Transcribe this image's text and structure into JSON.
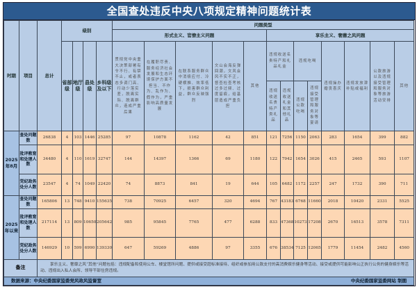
{
  "title": "全国查处违反中央八项规定精神问题统计表",
  "headers": {
    "period": "时期",
    "item": "项目",
    "total": "总计",
    "level": "级别",
    "levels": [
      "省部级",
      "地厅级",
      "县处级",
      "乡科级及以下"
    ],
    "problem_type": "问题类型",
    "formalism": "形式主义、官僚主义问题",
    "formalism_cols": [
      "贯彻党中央重大决策部署有令不行、有禁不止，或者表态多调门高、行动少落实差，脱离实际、脱离群众，造成严重后果",
      "在履职尽责、服务经济社会发展和生态环境保护方面不担当、不作为、乱作为、假作为，严重影响高质量发展",
      "在联系服务群众中消极应付、冷硬横推、效率低下，损害群众利益，群众反映强烈",
      "文山会海反弹回潮，文风会风不实不正，督查检查考核过多过频、过度留痕，给基层造成严重负担",
      "其他"
    ],
    "hedonism": "享乐主义、奢靡之风问题",
    "gifts": "违规收送名贵特产和礼品礼金",
    "gifts_sub": [
      "违规收送名贵特产类礼品",
      "违规收送礼金和其他礼品"
    ],
    "dining": "违规吃喝",
    "dining_sub": [
      "违规公款吃喝",
      "违规接受管理和服务对象等宴请"
    ],
    "hedonism_cols": [
      "违规操办婚丧喜庆",
      "违规发放津补贴或福利",
      "公款旅游以及违规接受管理和服务对象等旅游活动安排",
      "其他"
    ]
  },
  "rows": [
    {
      "period": "2025年8月",
      "item": "查处问题数",
      "values": [
        "26838",
        "4",
        "103",
        "1446",
        "25285",
        "97",
        "10878",
        "1162",
        "42",
        "851",
        "121",
        "7256",
        "1150",
        "2063",
        "283",
        "1654",
        "399",
        "882"
      ]
    },
    {
      "item": "批评教育和处理人数",
      "values": [
        "34480",
        "4",
        "110",
        "1619",
        "32747",
        "144",
        "14397",
        "1366",
        "69",
        "1180",
        "122",
        "7942",
        "1654",
        "3026",
        "415",
        "2465",
        "593",
        "1107"
      ]
    },
    {
      "item": "党纪政务处分人数",
      "values": [
        "23547",
        "4",
        "74",
        "1049",
        "22420",
        "74",
        "8873",
        "841",
        "19",
        "644",
        "105",
        "6482",
        "1172",
        "2257",
        "247",
        "1732",
        "390",
        "711"
      ]
    },
    {
      "period": "2025年以来",
      "item": "查处问题数",
      "values": [
        "165806",
        "13",
        "748",
        "9410",
        "155635",
        "738",
        "70925",
        "6457",
        "320",
        "4694",
        "767",
        "43183",
        "6768",
        "11660",
        "2018",
        "10420",
        "2331",
        "5525"
      ]
    },
    {
      "item": "批评教育和处理人数",
      "values": [
        "217114",
        "13",
        "809",
        "10650",
        "205642",
        "985",
        "95845",
        "7765",
        "477",
        "6288",
        "833",
        "47368",
        "10273",
        "17208",
        "2670",
        "16513",
        "3578",
        "7311"
      ]
    },
    {
      "item": "党纪政务处分人数",
      "values": [
        "146929",
        "10",
        "599",
        "6990",
        "139330",
        "647",
        "59269",
        "4886",
        "97",
        "3355",
        "676",
        "38534",
        "7125",
        "12065",
        "1779",
        "11454",
        "2482",
        "4560"
      ]
    }
  ],
  "note": {
    "label": "备注",
    "text": "享乐主义、奢靡之风“其他”问题包括：违规配备和使用公车、楼堂馆所问题、提供或接受超标准接待、组织或参加用公款支付的高消费娱乐健身等活动、接受或提供可能影响公正执行公务的健身娱乐等活动、违规出入私人会所、领导干部住房违规。"
  },
  "footer": {
    "source": "数据来源：中央纪委国家监委党风政风监督室",
    "credit": "中央纪委国家监委网站 制图"
  },
  "colors": {
    "title_bg": "#2c5a8f",
    "header_bg": "#b9cde6",
    "data_bg": "#fdd7b4",
    "footer_bg": "#8fb0d9"
  }
}
